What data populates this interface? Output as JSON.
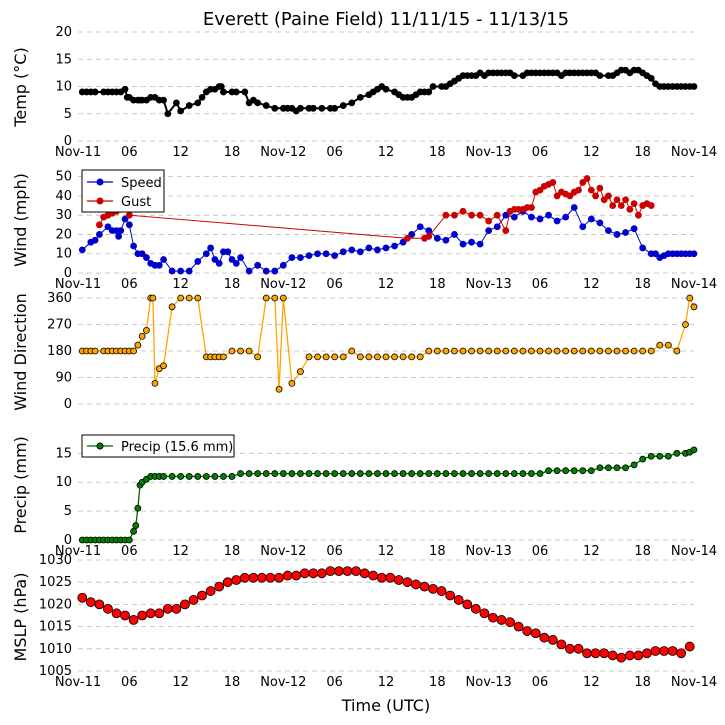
{
  "title": "Everett (Paine Field) 11/11/15 - 11/13/15",
  "xlabel": "Time (UTC)",
  "x_tick_labels": [
    "Nov-11",
    "06",
    "12",
    "18",
    "Nov-12",
    "06",
    "12",
    "18",
    "Nov-13",
    "06",
    "12",
    "18",
    "Nov-14"
  ],
  "colors": {
    "temp": "#000000",
    "speed": "#0000cc",
    "gust": "#cc0000",
    "direction_line": "#ffa500",
    "direction_marker": "#ffa500",
    "precip": "#006400",
    "precip_marker": "#008000",
    "pressure": "#ff0000",
    "grid": "#bbbbbb"
  },
  "chart_data": [
    {
      "type": "line",
      "panel": "temp",
      "ylabel": "Temp (°C)",
      "ylim": [
        0,
        20
      ],
      "yticks": [
        0,
        5,
        10,
        15,
        20
      ],
      "grid": "dashed horizontal",
      "x_units": "hours since Nov-11 00 UTC",
      "series": [
        {
          "key": "temp",
          "x": [
            1,
            2,
            3,
            4,
            6,
            7,
            8,
            9,
            10,
            11,
            11.5,
            12,
            13,
            14,
            14.5,
            15,
            16,
            17,
            18,
            19,
            20,
            21,
            23,
            24,
            26,
            28,
            29,
            30,
            31,
            32,
            33,
            33.5,
            34,
            36,
            37,
            39,
            40,
            41,
            42,
            44,
            46,
            48,
            49,
            50,
            51,
            52,
            54,
            55,
            57,
            59,
            60,
            62,
            64,
            66,
            68,
            69,
            70,
            71,
            72,
            74,
            75,
            76,
            77,
            78,
            79,
            80,
            81,
            82,
            83,
            85,
            86,
            87,
            88,
            89,
            90,
            91,
            92,
            93,
            94,
            95,
            96,
            97,
            98,
            99,
            100,
            101,
            102,
            104,
            105,
            106,
            107,
            108,
            109,
            110,
            111,
            112,
            113,
            114,
            115,
            116,
            117,
            118,
            119,
            120,
            121,
            122,
            124,
            125,
            126,
            127,
            128,
            129,
            130,
            131,
            132,
            133,
            134,
            135,
            136,
            137,
            138,
            139,
            140,
            141,
            142,
            143,
            144
          ],
          "y": [
            9,
            9,
            9,
            9,
            9,
            9,
            9,
            9,
            9,
            9.5,
            8,
            8,
            7.5,
            7.5,
            7.5,
            7.5,
            7.5,
            8,
            8,
            7.5,
            7.5,
            5,
            7,
            5.5,
            6.5,
            7,
            8,
            9,
            9.5,
            9.5,
            10,
            10,
            9,
            9,
            9,
            9,
            7,
            7.5,
            7,
            6.5,
            6,
            6,
            6,
            6,
            5.5,
            6,
            6,
            6,
            6,
            6,
            6,
            6.5,
            7,
            8,
            8.5,
            9,
            9.5,
            10,
            9.5,
            9,
            8.5,
            8,
            8,
            8,
            8.5,
            9,
            9,
            9,
            10,
            10,
            10,
            10.5,
            11,
            11.5,
            12,
            12,
            12,
            12,
            12.5,
            12,
            12.5,
            12.5,
            12.5,
            12.5,
            12.5,
            12.5,
            12,
            12,
            12.5,
            12.5,
            12.5,
            12.5,
            12.5,
            12.5,
            12.5,
            12.5,
            12,
            12.5,
            12.5,
            12.5,
            12.5,
            12.5,
            12.5,
            12.5,
            12.5,
            12,
            12,
            12,
            12.5,
            13,
            13,
            12.5,
            13,
            13,
            12.5,
            12,
            11.5,
            10.5,
            10,
            10,
            10,
            10,
            10,
            10,
            10,
            10,
            10
          ]
        }
      ]
    },
    {
      "type": "line",
      "panel": "wind",
      "ylabel": "Wind (mph)",
      "ylim": [
        0,
        55
      ],
      "yticks": [
        0,
        10,
        20,
        30,
        40,
        50
      ],
      "grid": "dashed horizontal",
      "legend_position": "top-left",
      "x_units": "hours since Nov-11 00 UTC",
      "series": [
        {
          "key": "speed",
          "name": "Speed",
          "x": [
            1,
            3,
            4,
            5,
            7,
            8,
            9,
            9.5,
            10,
            11,
            12,
            13,
            14,
            15,
            16,
            17,
            18,
            19,
            20,
            22,
            24,
            26,
            28,
            30,
            31,
            32,
            33,
            34,
            35,
            36,
            37,
            38,
            40,
            42,
            44,
            46,
            48,
            50,
            52,
            54,
            56,
            58,
            60,
            62,
            64,
            66,
            68,
            70,
            72,
            74,
            76,
            78,
            80,
            82,
            84,
            86,
            88,
            90,
            92,
            94,
            96,
            98,
            100,
            102,
            104,
            106,
            108,
            110,
            112,
            114,
            116,
            118,
            120,
            122,
            124,
            126,
            128,
            130,
            132,
            134,
            135,
            136,
            137,
            138,
            139,
            140,
            141,
            142,
            143,
            144
          ],
          "y": [
            12,
            16,
            17,
            20,
            24,
            22,
            22,
            19,
            22,
            28,
            25,
            14,
            10,
            10,
            8,
            5,
            4,
            4,
            7,
            1,
            1,
            1,
            6,
            10,
            13,
            7,
            5,
            11,
            11,
            7,
            5,
            8,
            1,
            4,
            1,
            1,
            4,
            8,
            8,
            9,
            10,
            10,
            9,
            11,
            12,
            11,
            13,
            12,
            13,
            14,
            16,
            20,
            24,
            22,
            18,
            17,
            20,
            15,
            16,
            15,
            22,
            24,
            30,
            29,
            32,
            29,
            28,
            30,
            27,
            29,
            34,
            24,
            28,
            26,
            22,
            20,
            21,
            23,
            13,
            10,
            10,
            8,
            9,
            10,
            10,
            10,
            10,
            10,
            10,
            10
          ]
        },
        {
          "key": "gust",
          "name": "Gust",
          "x": [
            5,
            6,
            7,
            8,
            9,
            10,
            11,
            12,
            77,
            81,
            82,
            86,
            88,
            90,
            92,
            94,
            96,
            98,
            100,
            101,
            102,
            103,
            104,
            105,
            106,
            107,
            108,
            109,
            110,
            111,
            112,
            113,
            114,
            115,
            116,
            117,
            118,
            119,
            120,
            121,
            122,
            123,
            124,
            125,
            126,
            127,
            128,
            129,
            130,
            131,
            132,
            133,
            134
          ],
          "y": [
            25,
            29,
            30,
            31,
            32,
            33,
            34,
            30,
            18,
            18,
            19,
            30,
            30,
            32,
            30,
            30,
            27,
            30,
            22,
            32,
            33,
            33,
            33,
            34,
            34,
            42,
            43,
            45,
            46,
            47,
            40,
            42,
            41,
            40,
            42,
            43,
            47,
            49,
            43,
            40,
            44,
            38,
            40,
            35,
            38,
            35,
            38,
            33,
            36,
            30,
            35,
            36,
            35
          ]
        }
      ]
    },
    {
      "type": "line",
      "panel": "direction",
      "ylabel": "Wind Direction",
      "ylim": [
        0,
        360
      ],
      "yticks": [
        0,
        90,
        180,
        270,
        360
      ],
      "grid": "dashed horizontal",
      "x_units": "hours since Nov-11 00 UTC",
      "series": [
        {
          "key": "direction",
          "x": [
            1,
            2,
            3,
            4,
            6,
            7,
            8,
            9,
            10,
            11,
            12,
            13,
            14,
            15,
            16,
            17,
            17.5,
            18,
            19,
            20,
            22,
            24,
            26,
            28,
            30,
            31,
            32,
            33,
            34,
            36,
            38,
            40,
            42,
            44,
            46,
            47,
            48,
            50,
            52,
            54,
            56,
            58,
            60,
            62,
            64,
            66,
            68,
            70,
            72,
            74,
            76,
            78,
            80,
            82,
            84,
            86,
            88,
            90,
            92,
            94,
            96,
            98,
            100,
            102,
            104,
            106,
            108,
            110,
            112,
            114,
            116,
            118,
            120,
            122,
            124,
            126,
            128,
            130,
            132,
            134,
            136,
            138,
            140,
            142,
            143,
            144
          ],
          "y": [
            180,
            180,
            180,
            180,
            180,
            180,
            180,
            180,
            180,
            180,
            180,
            180,
            200,
            230,
            250,
            360,
            360,
            70,
            120,
            130,
            330,
            360,
            360,
            360,
            160,
            160,
            160,
            160,
            160,
            180,
            180,
            180,
            160,
            360,
            360,
            50,
            360,
            70,
            110,
            160,
            160,
            160,
            160,
            160,
            180,
            160,
            160,
            160,
            160,
            160,
            160,
            160,
            160,
            180,
            180,
            180,
            180,
            180,
            180,
            180,
            180,
            180,
            180,
            180,
            180,
            180,
            180,
            180,
            180,
            180,
            180,
            180,
            180,
            180,
            180,
            180,
            180,
            180,
            180,
            180,
            200,
            200,
            180,
            270,
            360,
            330
          ]
        }
      ]
    },
    {
      "type": "line",
      "panel": "precip",
      "ylabel": "Precip (mm)",
      "ylim": [
        0,
        18
      ],
      "yticks": [
        0,
        5,
        10,
        15
      ],
      "grid": "dashed horizontal",
      "legend_position": "top-left",
      "x_units": "hours since Nov-11 00 UTC",
      "series": [
        {
          "key": "precip",
          "name": "Precip (15.6 mm)",
          "x": [
            1,
            2,
            3,
            4,
            5,
            6,
            7,
            8,
            9,
            10,
            11,
            12,
            13,
            13.5,
            14,
            14.5,
            15,
            16,
            17,
            18,
            19,
            20,
            22,
            24,
            26,
            28,
            30,
            32,
            34,
            36,
            38,
            40,
            42,
            44,
            46,
            48,
            50,
            52,
            54,
            56,
            58,
            60,
            62,
            64,
            66,
            68,
            70,
            72,
            74,
            76,
            78,
            80,
            82,
            84,
            86,
            88,
            90,
            92,
            94,
            96,
            98,
            100,
            102,
            104,
            106,
            108,
            110,
            112,
            114,
            116,
            118,
            120,
            122,
            124,
            126,
            128,
            130,
            132,
            134,
            136,
            138,
            140,
            142,
            143,
            144
          ],
          "y": [
            0,
            0,
            0,
            0,
            0,
            0,
            0,
            0,
            0,
            0,
            0,
            0,
            1.5,
            2.5,
            5.5,
            9.5,
            10,
            10.5,
            11,
            11,
            11,
            11,
            11,
            11,
            11,
            11,
            11,
            11,
            11,
            11,
            11.5,
            11.5,
            11.5,
            11.5,
            11.5,
            11.5,
            11.5,
            11.5,
            11.5,
            11.5,
            11.5,
            11.5,
            11.5,
            11.5,
            11.5,
            11.5,
            11.5,
            11.5,
            11.5,
            11.5,
            11.5,
            11.5,
            11.5,
            11.5,
            11.5,
            11.5,
            11.5,
            11.5,
            11.5,
            11.5,
            11.5,
            11.5,
            11.5,
            11.5,
            11.5,
            11.5,
            12,
            12,
            12,
            12,
            12,
            12,
            12.5,
            12.5,
            12.5,
            12.5,
            13,
            14,
            14.5,
            14.5,
            14.5,
            15,
            15,
            15.2,
            15.6
          ]
        }
      ]
    },
    {
      "type": "line",
      "panel": "pressure",
      "ylabel": "MSLP (hPa)",
      "xlabel": "Time (UTC)",
      "ylim": [
        1005,
        1030
      ],
      "yticks": [
        1005,
        1010,
        1015,
        1020,
        1025,
        1030
      ],
      "grid": "dashed horizontal",
      "x_units": "hours since Nov-11 00 UTC",
      "series": [
        {
          "key": "pressure",
          "x": [
            1,
            3,
            5,
            7,
            9,
            11,
            13,
            15,
            17,
            19,
            21,
            23,
            25,
            27,
            29,
            31,
            33,
            35,
            37,
            39,
            41,
            43,
            45,
            47,
            49,
            51,
            53,
            55,
            57,
            59,
            61,
            63,
            65,
            67,
            69,
            71,
            73,
            75,
            77,
            79,
            81,
            83,
            85,
            87,
            89,
            91,
            93,
            95,
            97,
            99,
            101,
            103,
            105,
            107,
            109,
            111,
            113,
            115,
            117,
            119,
            121,
            123,
            125,
            127,
            129,
            131,
            133,
            135,
            137,
            139,
            141,
            143
          ],
          "y": [
            1021.5,
            1020.5,
            1020,
            1019,
            1018,
            1017.5,
            1016.5,
            1017.5,
            1018,
            1018,
            1019,
            1019,
            1020,
            1021,
            1022,
            1023,
            1024,
            1025,
            1025.5,
            1026,
            1026,
            1026,
            1026,
            1026,
            1026.5,
            1026.5,
            1027,
            1027,
            1027,
            1027.5,
            1027.5,
            1027.5,
            1027.5,
            1027,
            1026.5,
            1026,
            1026,
            1025.5,
            1025,
            1024.5,
            1024,
            1023.5,
            1023,
            1022,
            1021,
            1020,
            1019,
            1018,
            1017,
            1016.5,
            1016,
            1015,
            1014,
            1013.5,
            1012.5,
            1012,
            1011,
            1010,
            1010,
            1009,
            1009,
            1009,
            1008.5,
            1008,
            1008.5,
            1008.5,
            1009,
            1009.5,
            1009.5,
            1009.5,
            1009,
            1010.5
          ]
        }
      ]
    }
  ]
}
